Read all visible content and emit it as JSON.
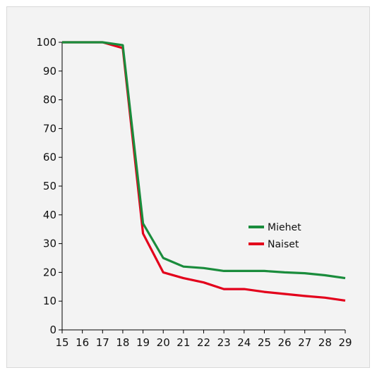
{
  "chart_data": {
    "type": "line",
    "x": [
      15,
      16,
      17,
      18,
      19,
      20,
      21,
      22,
      23,
      24,
      25,
      26,
      27,
      28,
      29
    ],
    "series": [
      {
        "name": "Miehet",
        "color": "#1a8c3c",
        "values": [
          100,
          100,
          100,
          99,
          37,
          25,
          22,
          21.5,
          20.5,
          20.5,
          20.5,
          20,
          19.7,
          19,
          18
        ]
      },
      {
        "name": "Naiset",
        "color": "#e3001b",
        "values": [
          100,
          100,
          100,
          98,
          33.5,
          20,
          18,
          16.5,
          14.2,
          14.2,
          13.2,
          12.5,
          11.8,
          11.2,
          10.2
        ]
      }
    ],
    "ylim": [
      0,
      100
    ],
    "y_ticks": [
      0,
      10,
      20,
      30,
      40,
      50,
      60,
      70,
      80,
      90,
      100
    ],
    "x_ticks": [
      15,
      16,
      17,
      18,
      19,
      20,
      21,
      22,
      23,
      24,
      25,
      26,
      27,
      28,
      29
    ],
    "grid": false,
    "legend_position": "right-middle",
    "title": "",
    "xlabel": "",
    "ylabel": ""
  }
}
